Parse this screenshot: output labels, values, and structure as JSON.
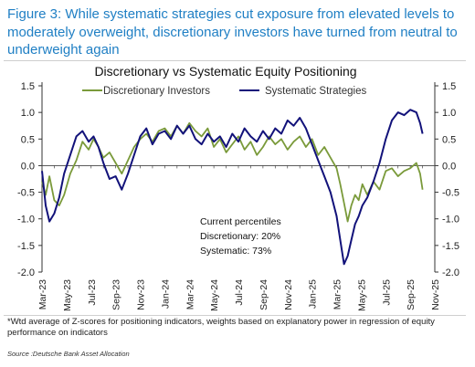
{
  "figure": {
    "heading": "Figure 3: While systematic strategies cut exposure from elevated levels to moderately overweight, discretionary investors have turned from neutral to underweight again",
    "footnote": "*Wtd average of Z-scores for positioning indicators, weights based on explanatory power in regression of equity performance on indicators",
    "source": "Source :Deutsche Bank Asset Allocation"
  },
  "chart_data": {
    "type": "line",
    "title": "Discretionary  vs Systematic Equity Positioning",
    "xlabel": "",
    "ylabel": "",
    "ylim": [
      -2.0,
      1.5
    ],
    "yticks": [
      "1.5",
      "1.0",
      "0.5",
      "0.0",
      "-0.5",
      "-1.0",
      "-1.5",
      "-2.0"
    ],
    "grid": false,
    "legend_position": "top",
    "x_tick_labels": [
      "Mar-23",
      "May-23",
      "Jul-23",
      "Sep-23",
      "Nov-23",
      "Jan-24",
      "Mar-24",
      "May-24",
      "Jul-24",
      "Sep-24",
      "Nov-24",
      "Jan-25",
      "Mar-25",
      "May-25",
      "Jul-25",
      "Sep-25",
      "Nov-25"
    ],
    "annotation": [
      "Current percentiles",
      "Discretionary: 20%",
      "Systematic: 73%"
    ],
    "x_months": [
      0,
      1,
      2,
      3,
      4,
      5,
      6,
      7,
      8,
      9,
      10,
      11,
      12,
      13,
      14,
      15,
      16,
      17,
      18,
      19,
      20,
      21,
      22,
      23,
      24,
      25,
      26,
      27,
      28,
      29,
      30,
      31,
      32
    ],
    "series": [
      {
        "name": "Discretionary Investors",
        "color": "#7a9a3a",
        "x": [
          0,
          0.3,
          0.6,
          1.0,
          1.4,
          1.8,
          2.3,
          2.8,
          3.3,
          3.8,
          4.2,
          4.6,
          5.0,
          5.5,
          6.0,
          6.5,
          7.0,
          7.5,
          8.0,
          8.5,
          9.0,
          9.5,
          10.0,
          10.5,
          11.0,
          11.5,
          12.0,
          12.5,
          13.0,
          13.5,
          14.0,
          14.5,
          15.0,
          15.5,
          16.0,
          16.5,
          17.0,
          17.5,
          18.0,
          18.5,
          19.0,
          19.5,
          20.0,
          20.5,
          21.0,
          21.5,
          22.0,
          22.5,
          23.0,
          23.5,
          24.0,
          24.3,
          24.6,
          24.9,
          25.2,
          25.5,
          25.8,
          26.1,
          26.5,
          27.0,
          27.5,
          28.0,
          28.5,
          29.0,
          29.5,
          30.0,
          30.5,
          30.8,
          31.0
        ],
        "values": [
          -0.3,
          -0.55,
          -0.2,
          -0.65,
          -0.75,
          -0.55,
          -0.15,
          0.1,
          0.45,
          0.3,
          0.5,
          0.35,
          0.15,
          0.25,
          0.05,
          -0.15,
          0.1,
          0.35,
          0.5,
          0.6,
          0.45,
          0.65,
          0.7,
          0.55,
          0.75,
          0.6,
          0.8,
          0.65,
          0.55,
          0.7,
          0.35,
          0.5,
          0.25,
          0.4,
          0.55,
          0.3,
          0.45,
          0.2,
          0.35,
          0.55,
          0.4,
          0.5,
          0.3,
          0.45,
          0.55,
          0.35,
          0.5,
          0.2,
          0.35,
          0.15,
          -0.05,
          -0.35,
          -0.7,
          -1.05,
          -0.75,
          -0.55,
          -0.65,
          -0.35,
          -0.55,
          -0.3,
          -0.45,
          -0.1,
          -0.05,
          -0.2,
          -0.1,
          -0.05,
          0.05,
          -0.15,
          -0.45
        ]
      },
      {
        "name": "Systematic Strategies",
        "color": "#12127a",
        "x": [
          0,
          0.3,
          0.6,
          1.0,
          1.4,
          1.8,
          2.3,
          2.8,
          3.3,
          3.8,
          4.2,
          4.6,
          5.0,
          5.5,
          6.0,
          6.5,
          7.0,
          7.5,
          8.0,
          8.5,
          9.0,
          9.5,
          10.0,
          10.5,
          11.0,
          11.5,
          12.0,
          12.5,
          13.0,
          13.5,
          14.0,
          14.5,
          15.0,
          15.5,
          16.0,
          16.5,
          17.0,
          17.5,
          18.0,
          18.5,
          19.0,
          19.5,
          20.0,
          20.5,
          21.0,
          21.5,
          22.0,
          22.5,
          23.0,
          23.5,
          24.0,
          24.3,
          24.6,
          24.9,
          25.2,
          25.5,
          25.8,
          26.1,
          26.5,
          27.0,
          27.5,
          28.0,
          28.5,
          29.0,
          29.5,
          30.0,
          30.5,
          30.8,
          31.0
        ],
        "values": [
          -0.1,
          -0.75,
          -1.05,
          -0.9,
          -0.6,
          -0.15,
          0.2,
          0.55,
          0.65,
          0.45,
          0.55,
          0.35,
          0.05,
          -0.25,
          -0.2,
          -0.45,
          -0.15,
          0.2,
          0.55,
          0.7,
          0.4,
          0.6,
          0.65,
          0.5,
          0.75,
          0.6,
          0.75,
          0.5,
          0.4,
          0.6,
          0.45,
          0.55,
          0.35,
          0.6,
          0.45,
          0.7,
          0.55,
          0.45,
          0.65,
          0.5,
          0.7,
          0.6,
          0.85,
          0.75,
          0.9,
          0.7,
          0.4,
          0.1,
          -0.2,
          -0.5,
          -0.95,
          -1.4,
          -1.85,
          -1.7,
          -1.4,
          -1.1,
          -0.95,
          -0.75,
          -0.6,
          -0.3,
          0.05,
          0.5,
          0.85,
          1.0,
          0.95,
          1.05,
          1.0,
          0.8,
          0.6
        ]
      }
    ]
  }
}
